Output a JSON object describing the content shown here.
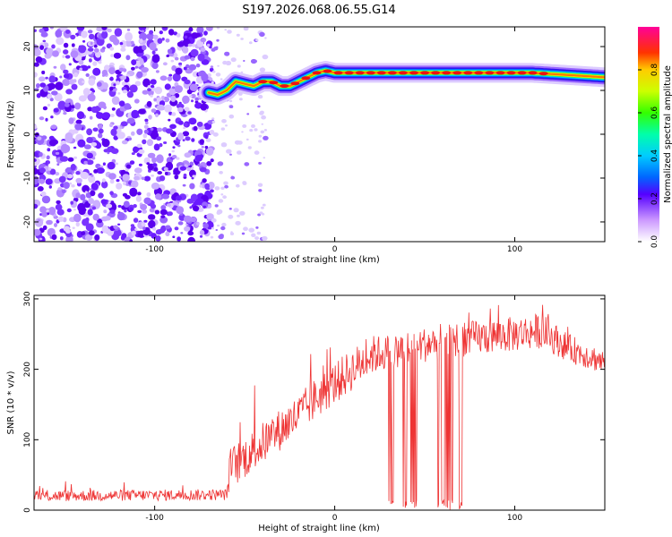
{
  "title": "S197.2026.068.06.55.G14",
  "chart_data": [
    {
      "type": "heatmap",
      "xlabel": "Height of straight line (km)",
      "ylabel": "Frequency (Hz)",
      "xlim": [
        -167,
        150
      ],
      "ylim": [
        -24.5,
        24.5
      ],
      "xticks": [
        -100,
        0,
        100
      ],
      "yticks": [
        -20,
        -10,
        0,
        10,
        20
      ],
      "noise_region_x": [
        -167,
        -68
      ],
      "ridge": {
        "x": [
          -70,
          -65,
          -60,
          -55,
          -50,
          -45,
          -40,
          -35,
          -30,
          -25,
          -20,
          -15,
          -10,
          -5,
          0,
          20,
          50,
          80,
          110,
          130,
          150
        ],
        "freq": [
          9.5,
          9,
          10,
          12,
          11.5,
          11,
          12,
          12,
          11,
          11,
          12,
          13,
          14,
          14.5,
          14,
          14,
          14,
          14,
          14,
          13.5,
          13
        ]
      },
      "colorbar": {
        "label": "Normalized spectral amplitude",
        "range": [
          0,
          1
        ],
        "ticks": [
          0.0,
          0.2,
          0.4,
          0.6,
          0.8
        ]
      }
    },
    {
      "type": "line",
      "color": "#ee3333",
      "xlabel": "Height of straight line (km)",
      "ylabel": "SNR (10 * v/v)",
      "xlim": [
        -167,
        150
      ],
      "ylim": [
        0,
        305
      ],
      "xticks": [
        -100,
        0,
        100
      ],
      "yticks": [
        0,
        100,
        200,
        300
      ],
      "envelope": {
        "x": [
          -167,
          -60,
          -58,
          -50,
          -40,
          -30,
          -20,
          -10,
          0,
          10,
          20,
          30,
          40,
          60,
          80,
          100,
          115,
          130,
          150
        ],
        "mean": [
          20,
          22,
          60,
          75,
          95,
          115,
          135,
          160,
          180,
          200,
          220,
          225,
          230,
          240,
          245,
          250,
          255,
          230,
          210
        ],
        "amp": [
          8,
          8,
          30,
          30,
          30,
          30,
          30,
          30,
          30,
          30,
          28,
          25,
          25,
          25,
          25,
          25,
          25,
          20,
          18
        ]
      },
      "dropouts": [
        {
          "x0": 30,
          "x1": 34
        },
        {
          "x0": 38,
          "x1": 46
        },
        {
          "x0": 57,
          "x1": 66
        },
        {
          "x0": 69,
          "x1": 72
        }
      ]
    }
  ]
}
